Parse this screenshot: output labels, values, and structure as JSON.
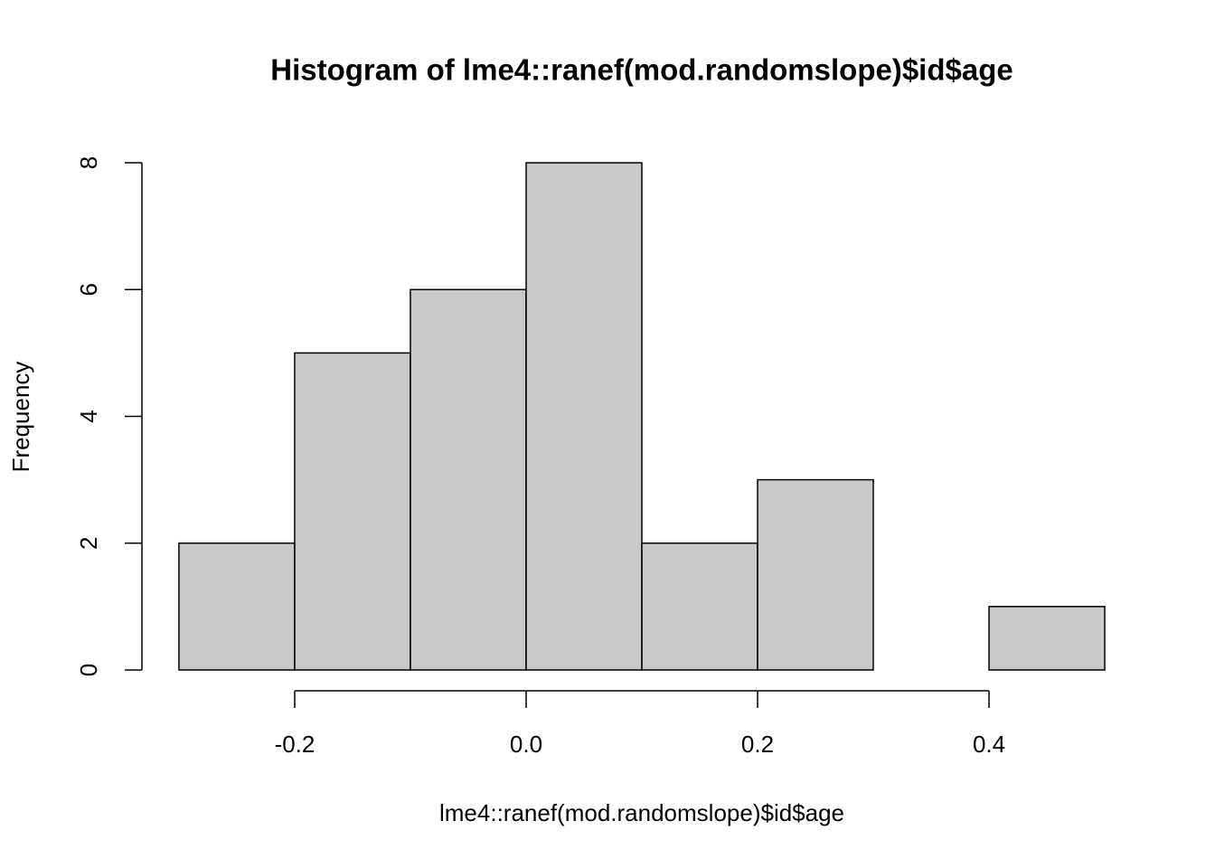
{
  "chart_data": {
    "type": "histogram",
    "title": "Histogram of lme4::ranef(mod.randomslope)$id$age",
    "x_label": "lme4::ranef(mod.randomslope)$id$age",
    "y_label": "Frequency",
    "bins": [
      -0.3,
      -0.2,
      -0.1,
      0.0,
      0.1,
      0.2,
      0.3,
      0.4,
      0.5
    ],
    "values": [
      2,
      5,
      6,
      8,
      2,
      3,
      0,
      1
    ],
    "color": "#c9c9c9",
    "xlim": [
      -0.332,
      0.532
    ],
    "ylim": [
      -0.32,
      8.32
    ],
    "xticks": [
      -0.2,
      {
        "value": 0,
        "label": "0.0"
      },
      0.2,
      0.4
    ],
    "yticks": [
      0,
      2,
      4,
      6,
      8
    ]
  }
}
